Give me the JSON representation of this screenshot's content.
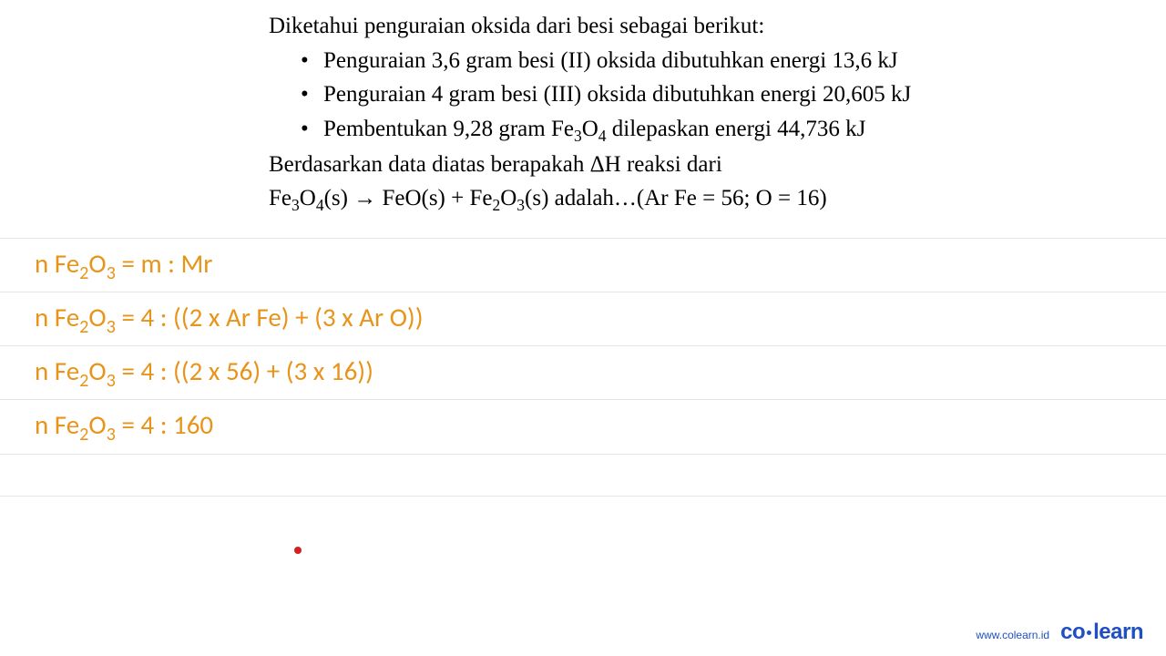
{
  "problem": {
    "intro": "Diketahui penguraian oksida dari besi sebagai berikut:",
    "bullets": [
      "Penguraian 3,6 gram besi (II) oksida dibutuhkan energi 13,6 kJ",
      "Penguraian 4 gram besi (III) oksida dibutuhkan energi 20,605 kJ",
      "Pembentukan 9,28 gram Fe₃O₄ dilepaskan energi 44,736 kJ"
    ],
    "question_line1": "Berdasarkan data diatas berapakah ΔH reaksi dari",
    "question_line2": "Fe₃O₄(s) → FeO(s) + Fe₂O₃(s) adalah…(Ar Fe = 56; O = 16)"
  },
  "solution": {
    "lines": [
      "n Fe₂O₃ = m : Mr",
      "n Fe₂O₃ = 4 : ((2 x Ar Fe) + (3 x Ar O))",
      "n Fe₂O₃ = 4 : ((2 x 56) + (3 x 16))",
      "n Fe₂O₃ = 4 : 160"
    ]
  },
  "footer": {
    "url": "www.colearn.id",
    "logo_part1": "co",
    "logo_part2": "learn"
  },
  "styling": {
    "problem_text_color": "#000000",
    "problem_font_size": 25,
    "solution_text_color": "#e8941a",
    "solution_font_size": 29,
    "line_color": "#e5e5e5",
    "background_color": "#ffffff",
    "footer_color": "#1e4fc4",
    "red_dot_color": "#d62020"
  }
}
